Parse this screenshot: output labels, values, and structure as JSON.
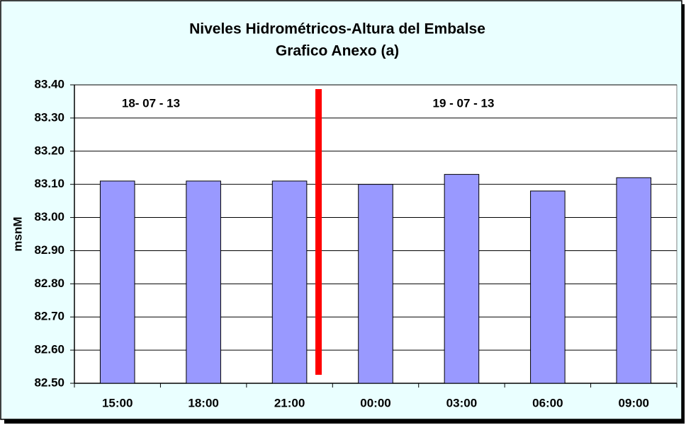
{
  "chart_data": {
    "type": "bar",
    "title": "Niveles Hidrométricos-Altura del Embalse",
    "subtitle": "Grafico Anexo (a)",
    "y_label": "msnM",
    "annotations": [
      "18- 07 - 13",
      "19 - 07 - 13"
    ],
    "categories": [
      "15:00",
      "18:00",
      "21:00",
      "00:00",
      "03:00",
      "06:00",
      "09:00"
    ],
    "values": [
      83.11,
      83.11,
      83.11,
      83.1,
      83.13,
      83.08,
      83.12
    ],
    "color": "#9999ff",
    "ylim": [
      82.5,
      83.4
    ],
    "yticks": [
      {
        "value": 82.5,
        "label": "82.50"
      },
      {
        "value": 82.6,
        "label": "82.60"
      },
      {
        "value": 82.7,
        "label": "82.70"
      },
      {
        "value": 82.8,
        "label": "82.80"
      },
      {
        "value": 82.9,
        "label": "82.90"
      },
      {
        "value": 83.0,
        "label": "83.00"
      },
      {
        "value": 83.1,
        "label": "83.10"
      },
      {
        "value": 83.2,
        "label": "83.20"
      },
      {
        "value": 83.3,
        "label": "83.30"
      },
      {
        "value": 83.4,
        "label": "83.40"
      }
    ],
    "grid": true
  }
}
